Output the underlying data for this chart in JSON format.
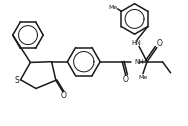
{
  "bg_color": "#ffffff",
  "line_color": "#1a1a1a",
  "lw": 1.1,
  "figsize": [
    1.88,
    1.26
  ],
  "dpi": 100,
  "xlim": [
    0,
    10
  ],
  "ylim": [
    0,
    6.7
  ]
}
